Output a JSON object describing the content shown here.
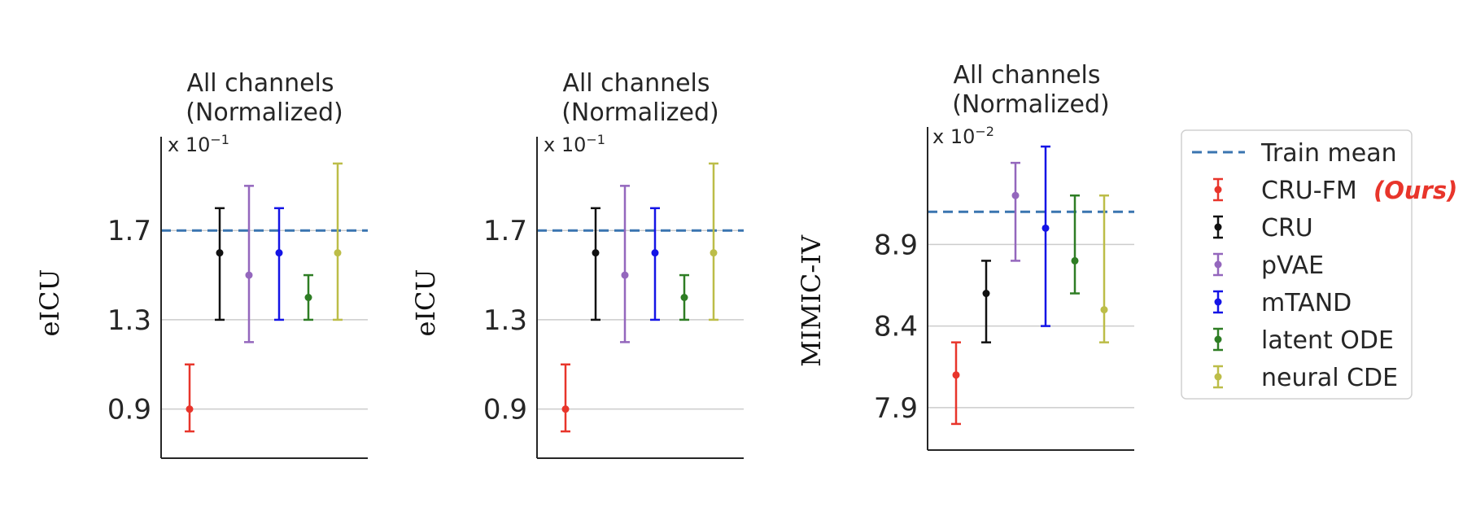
{
  "chart_data": [
    {
      "type": "errorbar",
      "title_lines": [
        "All channels",
        "(Normalized)"
      ],
      "ylabel": "eICU",
      "scale_base": "x 10",
      "scale_exp": "−1",
      "yticks": [
        "0.9",
        "1.3",
        "1.7"
      ],
      "ytick_values": [
        0.9,
        1.3,
        1.7
      ],
      "ylim": [
        0.68,
        2.12
      ],
      "grid": "horizontal",
      "train_mean": 1.7,
      "series": [
        {
          "name": "CRU-FM",
          "mean": 0.9,
          "low": 0.8,
          "high": 1.1
        },
        {
          "name": "CRU",
          "mean": 1.6,
          "low": 1.3,
          "high": 1.8
        },
        {
          "name": "pVAE",
          "mean": 1.5,
          "low": 1.2,
          "high": 1.9
        },
        {
          "name": "mTAND",
          "mean": 1.6,
          "low": 1.3,
          "high": 1.8
        },
        {
          "name": "latent ODE",
          "mean": 1.4,
          "low": 1.3,
          "high": 1.5
        },
        {
          "name": "neural CDE",
          "mean": 1.6,
          "low": 1.3,
          "high": 2.0
        }
      ]
    },
    {
      "type": "errorbar",
      "title_lines": [
        "All channels",
        "(Normalized)"
      ],
      "ylabel": "eICU",
      "scale_base": "x 10",
      "scale_exp": "−1",
      "yticks": [
        "0.9",
        "1.3",
        "1.7"
      ],
      "ytick_values": [
        0.9,
        1.3,
        1.7
      ],
      "ylim": [
        0.68,
        2.12
      ],
      "grid": "horizontal",
      "train_mean": 1.7,
      "series": [
        {
          "name": "CRU-FM",
          "mean": 0.9,
          "low": 0.8,
          "high": 1.1
        },
        {
          "name": "CRU",
          "mean": 1.6,
          "low": 1.3,
          "high": 1.8
        },
        {
          "name": "pVAE",
          "mean": 1.5,
          "low": 1.2,
          "high": 1.9
        },
        {
          "name": "mTAND",
          "mean": 1.6,
          "low": 1.3,
          "high": 1.8
        },
        {
          "name": "latent ODE",
          "mean": 1.4,
          "low": 1.3,
          "high": 1.5
        },
        {
          "name": "neural CDE",
          "mean": 1.6,
          "low": 1.3,
          "high": 2.0
        }
      ]
    },
    {
      "type": "errorbar",
      "title_lines": [
        "All channels",
        "(Normalized)"
      ],
      "ylabel": "MIMIC-IV",
      "scale_base": "x 10",
      "scale_exp": "−2",
      "yticks": [
        "7.9",
        "8.4",
        "8.9"
      ],
      "ytick_values": [
        7.9,
        8.4,
        8.9
      ],
      "ylim": [
        7.64,
        9.62
      ],
      "grid": "horizontal",
      "train_mean": 9.1,
      "series": [
        {
          "name": "CRU-FM",
          "mean": 8.1,
          "low": 7.8,
          "high": 8.3
        },
        {
          "name": "CRU",
          "mean": 8.6,
          "low": 8.3,
          "high": 8.8
        },
        {
          "name": "pVAE",
          "mean": 9.2,
          "low": 8.8,
          "high": 9.4
        },
        {
          "name": "mTAND",
          "mean": 9.0,
          "low": 8.4,
          "high": 9.5
        },
        {
          "name": "latent ODE",
          "mean": 8.8,
          "low": 8.6,
          "high": 9.2
        },
        {
          "name": "neural CDE",
          "mean": 8.5,
          "low": 8.3,
          "high": 9.2
        }
      ]
    }
  ],
  "legend": {
    "items": [
      {
        "label": "Train mean",
        "kind": "dashed-line"
      },
      {
        "label": "CRU-FM",
        "kind": "errorbar",
        "tag": "(Ours)"
      },
      {
        "label": "CRU",
        "kind": "errorbar"
      },
      {
        "label": "pVAE",
        "kind": "errorbar"
      },
      {
        "label": "mTAND",
        "kind": "errorbar"
      },
      {
        "label": "latent ODE",
        "kind": "errorbar"
      },
      {
        "label": "neural CDE",
        "kind": "errorbar"
      }
    ]
  },
  "colors": {
    "train_mean": "#3a75b0",
    "CRU-FM": "#e8352b",
    "CRU": "#111111",
    "pVAE": "#9467bd",
    "mTAND": "#1414e6",
    "latent ODE": "#2e7d24",
    "neural CDE": "#bcbd48",
    "axis": "#262626",
    "grid": "#cccccc"
  }
}
